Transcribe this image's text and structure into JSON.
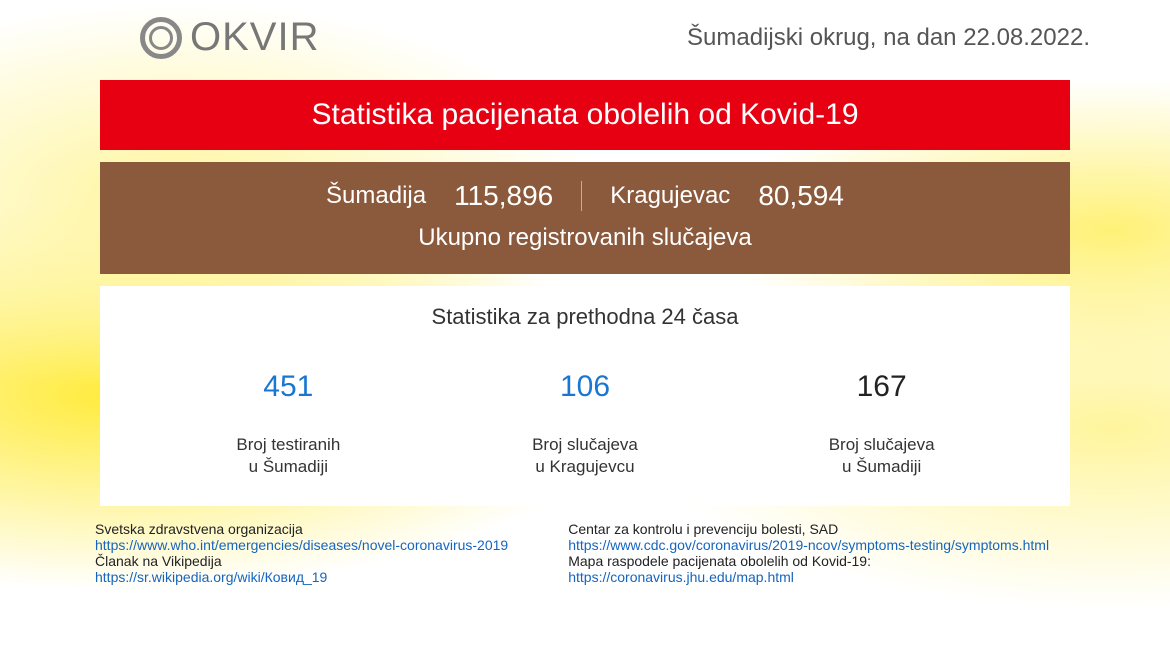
{
  "logo": {
    "text": "OKVIR"
  },
  "header": {
    "region_label": "Šumadijski okrug, na dan",
    "date": "22.08.2022."
  },
  "red_banner": {
    "title": "Statistika pacijenata obolelih od Kovid-19"
  },
  "brown_banner": {
    "region1_label": "Šumadija",
    "region1_value": "115,896",
    "region2_label": "Kragujevac",
    "region2_value": "80,594",
    "subtitle": "Ukupno registrovanih slučajeva"
  },
  "white_panel": {
    "title": "Statistika za prethodna 24 časa",
    "stats": [
      {
        "value": "451",
        "color": "blue",
        "label_line1": "Broj testiranih",
        "label_line2": "u Šumadiji"
      },
      {
        "value": "106",
        "color": "blue",
        "label_line1": "Broj slučajeva",
        "label_line2": "u Kragujevcu"
      },
      {
        "value": "167",
        "color": "black",
        "label_line1": "Broj slučajeva",
        "label_line2": "u Šumadiji"
      }
    ]
  },
  "footer": {
    "left": [
      {
        "type": "label",
        "text": "Svetska zdravstvena organizacija"
      },
      {
        "type": "link",
        "text": "https://www.who.int/emergencies/diseases/novel-coronavirus-2019"
      },
      {
        "type": "label",
        "text": "Članak na Vikipedija"
      },
      {
        "type": "link",
        "text": "https://sr.wikipedia.org/wiki/Ковид_19"
      }
    ],
    "right": [
      {
        "type": "label",
        "text": "Centar za kontrolu i prevenciju bolesti, SAD"
      },
      {
        "type": "link",
        "text": "https://www.cdc.gov/coronavirus/2019-ncov/symptoms-testing/symptoms.html"
      },
      {
        "type": "label",
        "text": "Mapa raspodele pacijenata obolelih od Kovid-19:"
      },
      {
        "type": "link",
        "text": "https://coronavirus.jhu.edu/map.html"
      }
    ]
  },
  "colors": {
    "red_bg": "#e60012",
    "brown_bg": "#8b5a3c",
    "blue_text": "#1976d2",
    "link_color": "#1565c0"
  }
}
